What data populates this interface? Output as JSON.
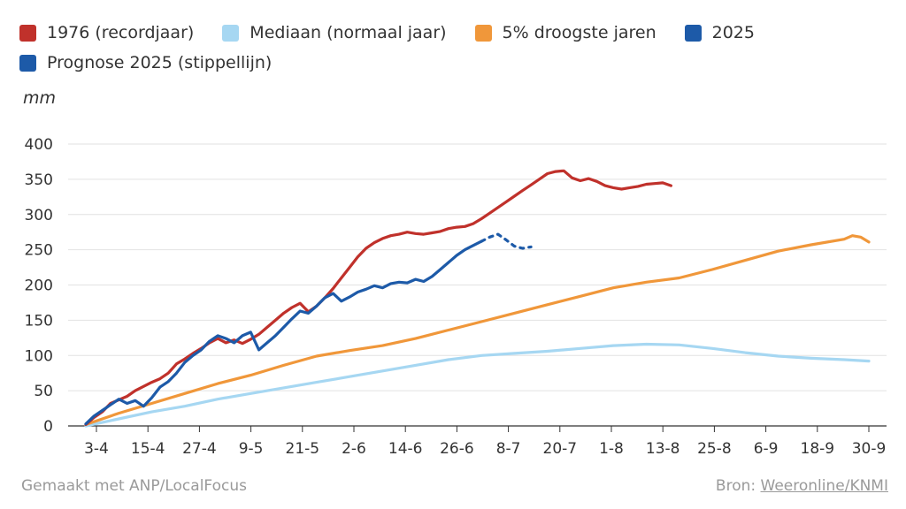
{
  "chart_data": {
    "type": "line",
    "unit": "mm",
    "legend_position": "top-left",
    "grid": true,
    "ylim": [
      0,
      400
    ],
    "y_ticks": [
      0,
      50,
      100,
      150,
      200,
      250,
      300,
      350,
      400
    ],
    "x_labels": [
      "3-4",
      "15-4",
      "27-4",
      "9-5",
      "21-5",
      "2-6",
      "14-6",
      "26-6",
      "8-7",
      "20-7",
      "1-8",
      "13-8",
      "25-8",
      "6-9",
      "18-9",
      "30-9"
    ],
    "series": [
      {
        "name": "1976 (recordjaar)",
        "color": "#c0312b",
        "dashed": false,
        "points": [
          [
            0,
            2
          ],
          [
            1,
            12
          ],
          [
            2,
            20
          ],
          [
            3,
            32
          ],
          [
            4,
            37
          ],
          [
            5,
            42
          ],
          [
            6,
            50
          ],
          [
            7,
            56
          ],
          [
            8,
            62
          ],
          [
            9,
            67
          ],
          [
            10,
            75
          ],
          [
            11,
            88
          ],
          [
            12,
            95
          ],
          [
            13,
            103
          ],
          [
            14,
            110
          ],
          [
            15,
            118
          ],
          [
            16,
            124
          ],
          [
            17,
            118
          ],
          [
            18,
            122
          ],
          [
            19,
            117
          ],
          [
            20,
            123
          ],
          [
            21,
            130
          ],
          [
            22,
            140
          ],
          [
            23,
            150
          ],
          [
            24,
            160
          ],
          [
            25,
            168
          ],
          [
            26,
            174
          ],
          [
            27,
            162
          ],
          [
            28,
            170
          ],
          [
            29,
            182
          ],
          [
            30,
            195
          ],
          [
            31,
            210
          ],
          [
            32,
            225
          ],
          [
            33,
            240
          ],
          [
            34,
            252
          ],
          [
            35,
            260
          ],
          [
            36,
            266
          ],
          [
            37,
            270
          ],
          [
            38,
            272
          ],
          [
            39,
            275
          ],
          [
            40,
            273
          ],
          [
            41,
            272
          ],
          [
            42,
            274
          ],
          [
            43,
            276
          ],
          [
            44,
            280
          ],
          [
            45,
            282
          ],
          [
            46,
            283
          ],
          [
            47,
            287
          ],
          [
            48,
            294
          ],
          [
            49,
            302
          ],
          [
            50,
            310
          ],
          [
            51,
            318
          ],
          [
            52,
            326
          ],
          [
            53,
            334
          ],
          [
            54,
            342
          ],
          [
            55,
            350
          ],
          [
            56,
            358
          ],
          [
            57,
            361
          ],
          [
            58,
            362
          ],
          [
            59,
            352
          ],
          [
            60,
            348
          ],
          [
            61,
            351
          ],
          [
            62,
            347
          ],
          [
            63,
            341
          ],
          [
            64,
            338
          ],
          [
            65,
            336
          ],
          [
            66,
            338
          ],
          [
            67,
            340
          ],
          [
            68,
            343
          ],
          [
            69,
            344
          ],
          [
            70,
            345
          ],
          [
            71,
            341
          ]
        ]
      },
      {
        "name": "Mediaan (normaal jaar)",
        "color": "#a6d7f2",
        "dashed": false,
        "points": [
          [
            0,
            0
          ],
          [
            4,
            10
          ],
          [
            8,
            20
          ],
          [
            12,
            28
          ],
          [
            16,
            38
          ],
          [
            20,
            46
          ],
          [
            24,
            54
          ],
          [
            28,
            62
          ],
          [
            32,
            70
          ],
          [
            36,
            78
          ],
          [
            40,
            86
          ],
          [
            44,
            94
          ],
          [
            48,
            100
          ],
          [
            52,
            103
          ],
          [
            56,
            106
          ],
          [
            60,
            110
          ],
          [
            64,
            114
          ],
          [
            68,
            116
          ],
          [
            72,
            115
          ],
          [
            76,
            110
          ],
          [
            80,
            104
          ],
          [
            84,
            99
          ],
          [
            88,
            96
          ],
          [
            92,
            94
          ],
          [
            95,
            92
          ]
        ]
      },
      {
        "name": "5% droogste jaren",
        "color": "#f0973a",
        "dashed": false,
        "points": [
          [
            0,
            2
          ],
          [
            4,
            18
          ],
          [
            8,
            32
          ],
          [
            12,
            46
          ],
          [
            16,
            60
          ],
          [
            20,
            72
          ],
          [
            24,
            86
          ],
          [
            28,
            99
          ],
          [
            32,
            107
          ],
          [
            36,
            114
          ],
          [
            40,
            124
          ],
          [
            44,
            136
          ],
          [
            48,
            148
          ],
          [
            52,
            160
          ],
          [
            56,
            172
          ],
          [
            60,
            184
          ],
          [
            64,
            196
          ],
          [
            68,
            204
          ],
          [
            72,
            210
          ],
          [
            76,
            222
          ],
          [
            80,
            235
          ],
          [
            84,
            248
          ],
          [
            88,
            257
          ],
          [
            92,
            265
          ],
          [
            93,
            270
          ],
          [
            94,
            268
          ],
          [
            95,
            261
          ]
        ]
      },
      {
        "name": "2025",
        "color": "#1d5aa8",
        "dashed": false,
        "points": [
          [
            0,
            3
          ],
          [
            1,
            14
          ],
          [
            2,
            22
          ],
          [
            3,
            30
          ],
          [
            4,
            38
          ],
          [
            5,
            32
          ],
          [
            6,
            36
          ],
          [
            7,
            28
          ],
          [
            8,
            40
          ],
          [
            9,
            55
          ],
          [
            10,
            63
          ],
          [
            11,
            75
          ],
          [
            12,
            90
          ],
          [
            13,
            100
          ],
          [
            14,
            108
          ],
          [
            15,
            120
          ],
          [
            16,
            128
          ],
          [
            17,
            124
          ],
          [
            18,
            118
          ],
          [
            19,
            128
          ],
          [
            20,
            133
          ],
          [
            21,
            108
          ],
          [
            22,
            118
          ],
          [
            23,
            128
          ],
          [
            24,
            140
          ],
          [
            25,
            152
          ],
          [
            26,
            163
          ],
          [
            27,
            160
          ],
          [
            28,
            170
          ],
          [
            29,
            182
          ],
          [
            30,
            188
          ],
          [
            31,
            177
          ],
          [
            32,
            183
          ],
          [
            33,
            190
          ],
          [
            34,
            194
          ],
          [
            35,
            199
          ],
          [
            36,
            196
          ],
          [
            37,
            202
          ],
          [
            38,
            204
          ],
          [
            39,
            203
          ],
          [
            40,
            208
          ],
          [
            41,
            205
          ],
          [
            42,
            212
          ],
          [
            43,
            222
          ],
          [
            44,
            232
          ],
          [
            45,
            242
          ],
          [
            46,
            250
          ],
          [
            47,
            256
          ],
          [
            48,
            262
          ]
        ]
      },
      {
        "name": "Prognose 2025 (stippellijn)",
        "color": "#1d5aa8",
        "dashed": true,
        "points": [
          [
            48,
            262
          ],
          [
            49,
            268
          ],
          [
            50,
            272
          ],
          [
            51,
            264
          ],
          [
            52,
            255
          ],
          [
            53,
            252
          ],
          [
            54,
            254
          ]
        ]
      }
    ]
  },
  "footer": {
    "made_with": "Gemaakt met ANP/LocalFocus",
    "source_label": "Bron:",
    "source_link": "Weeronline/KNMI"
  }
}
